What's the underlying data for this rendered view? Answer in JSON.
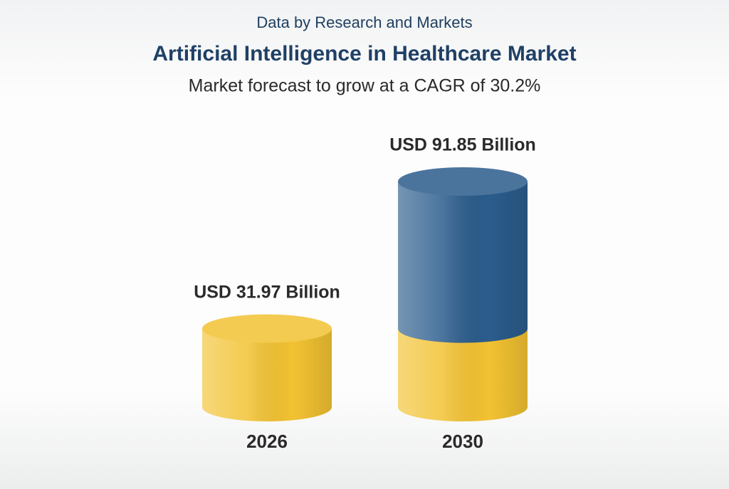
{
  "chart_data": {
    "type": "cylinder",
    "source": "Data by Research and Markets",
    "title": "Artificial Intelligence in Healthcare Market",
    "subtitle": "Market forecast to grow at a CAGR of 30.2%",
    "categories": [
      "2026",
      "2030"
    ],
    "values": [
      31.97,
      91.85
    ],
    "value_labels": [
      "USD 31.97 Billion",
      "USD 91.85 Billion"
    ],
    "colors": [
      "#f2c232",
      "#2b5c8c"
    ]
  }
}
